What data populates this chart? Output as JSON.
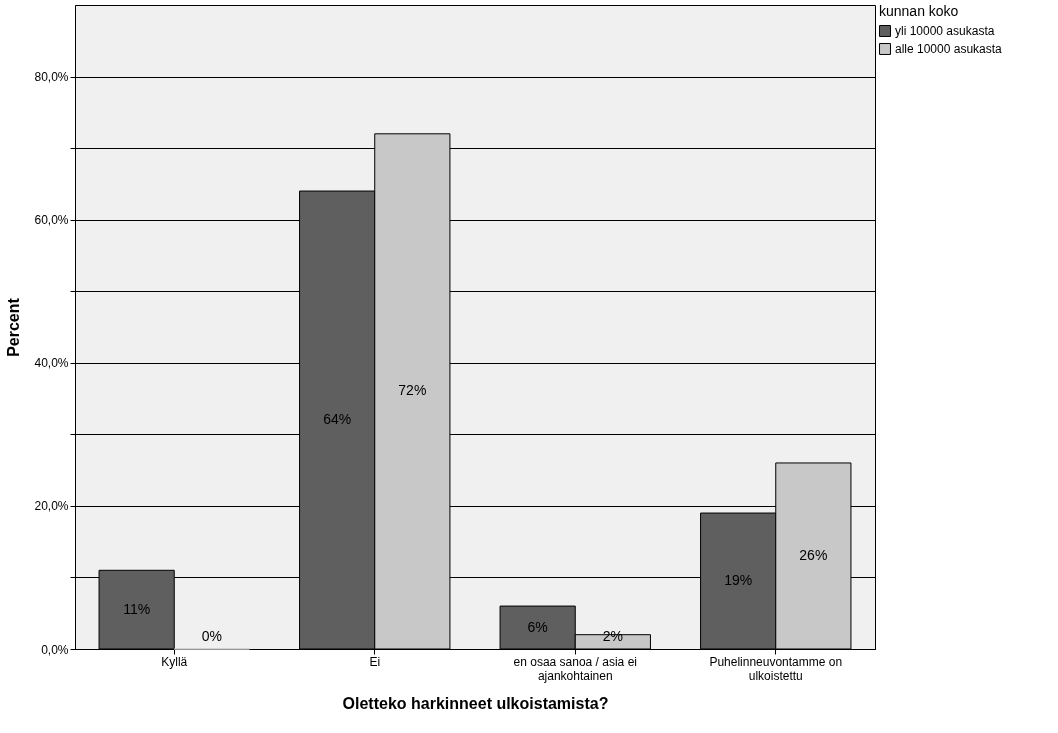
{
  "chart_data": {
    "type": "bar",
    "xlabel": "Oletteko harkinneet ulkoistamista?",
    "ylabel": "Percent",
    "legend_title": "kunnan koko",
    "categories": [
      "Kyllä",
      "Ei",
      "en osaa sanoa / asia ei ajankohtainen",
      "Puhelinneuvontamme on ulkoistettu"
    ],
    "series": [
      {
        "name": "yli 10000 asukasta",
        "color": "#5f5f5f",
        "values": [
          11,
          64,
          6,
          19
        ],
        "value_labels": [
          "11%",
          "64%",
          "6%",
          "19%"
        ]
      },
      {
        "name": "alle 10000 asukasta",
        "color": "#c8c8c8",
        "values": [
          0,
          72,
          2,
          26
        ],
        "value_labels": [
          "0%",
          "72%",
          "2%",
          "26%"
        ]
      }
    ],
    "ylim": [
      0,
      90
    ],
    "yticks": [
      {
        "value": 0,
        "label": "0,0%"
      },
      {
        "value": 10,
        "label": null
      },
      {
        "value": 20,
        "label": "20,0%"
      },
      {
        "value": 30,
        "label": null
      },
      {
        "value": 40,
        "label": "40,0%"
      },
      {
        "value": 50,
        "label": null
      },
      {
        "value": 60,
        "label": "60,0%"
      },
      {
        "value": 70,
        "label": null
      },
      {
        "value": 80,
        "label": "80,0%"
      }
    ],
    "grid": "y",
    "legend": "top right"
  }
}
